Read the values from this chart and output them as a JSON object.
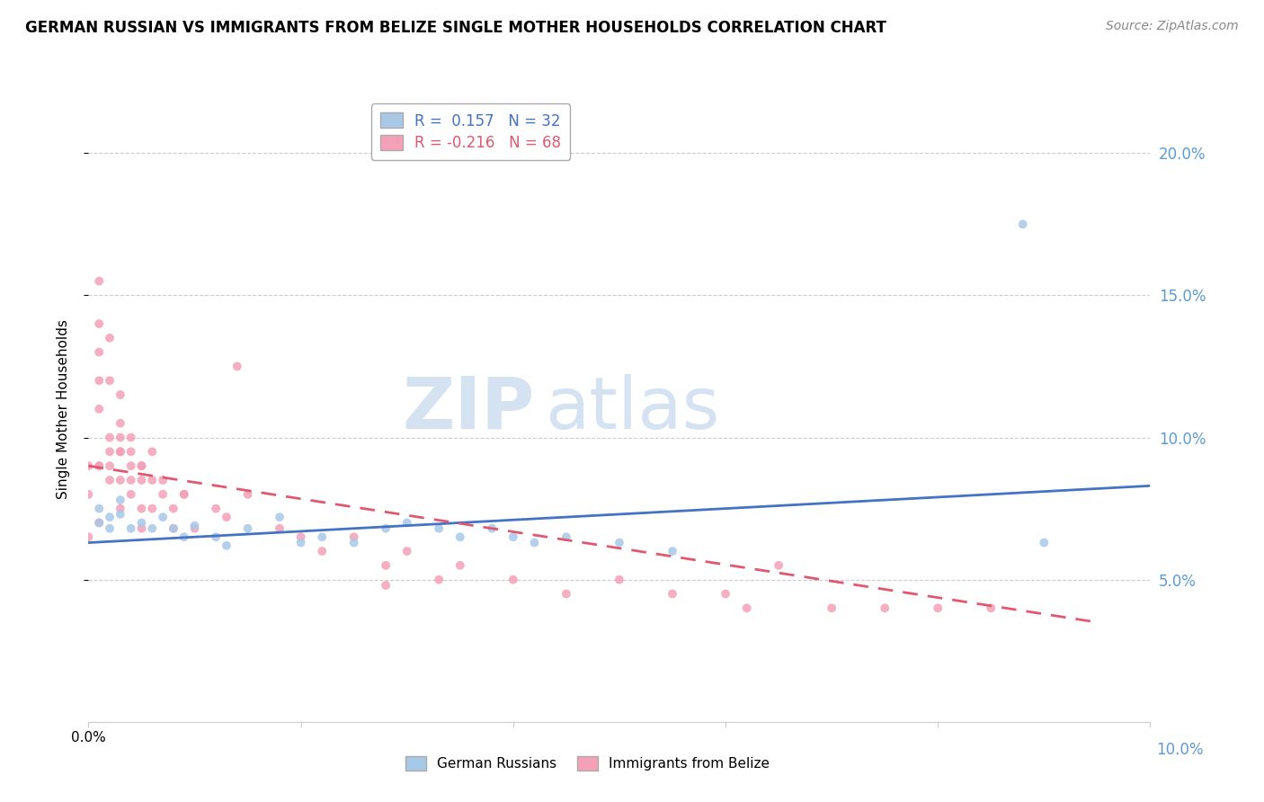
{
  "title": "GERMAN RUSSIAN VS IMMIGRANTS FROM BELIZE SINGLE MOTHER HOUSEHOLDS CORRELATION CHART",
  "source": "Source: ZipAtlas.com",
  "ylabel": "Single Mother Households",
  "watermark_zip": "ZIP",
  "watermark_atlas": "atlas",
  "color_blue": "#a8c8e8",
  "color_pink": "#f4a0b8",
  "color_line_blue": "#4472c4",
  "color_line_pink": "#e05870",
  "blue_scatter": {
    "x": [
      0.001,
      0.001,
      0.002,
      0.002,
      0.003,
      0.003,
      0.004,
      0.005,
      0.006,
      0.007,
      0.008,
      0.009,
      0.01,
      0.012,
      0.013,
      0.015,
      0.018,
      0.02,
      0.022,
      0.025,
      0.028,
      0.03,
      0.033,
      0.035,
      0.038,
      0.04,
      0.042,
      0.045,
      0.05,
      0.055,
      0.088,
      0.09
    ],
    "y": [
      0.075,
      0.07,
      0.072,
      0.068,
      0.078,
      0.073,
      0.068,
      0.07,
      0.068,
      0.072,
      0.068,
      0.065,
      0.069,
      0.065,
      0.062,
      0.068,
      0.072,
      0.063,
      0.065,
      0.063,
      0.068,
      0.07,
      0.068,
      0.065,
      0.068,
      0.065,
      0.063,
      0.065,
      0.063,
      0.06,
      0.175,
      0.063
    ]
  },
  "pink_scatter": {
    "x": [
      0.0,
      0.0,
      0.001,
      0.001,
      0.001,
      0.001,
      0.001,
      0.001,
      0.002,
      0.002,
      0.002,
      0.002,
      0.003,
      0.003,
      0.003,
      0.003,
      0.003,
      0.004,
      0.004,
      0.004,
      0.005,
      0.005,
      0.005,
      0.005,
      0.006,
      0.006,
      0.007,
      0.008,
      0.009,
      0.01,
      0.012,
      0.013,
      0.015,
      0.018,
      0.02,
      0.022,
      0.025,
      0.028,
      0.03,
      0.033,
      0.035,
      0.04,
      0.045,
      0.05,
      0.055,
      0.06,
      0.062,
      0.065,
      0.07,
      0.075,
      0.08,
      0.085,
      0.0,
      0.001,
      0.001,
      0.002,
      0.002,
      0.003,
      0.003,
      0.004,
      0.004,
      0.005,
      0.006,
      0.007,
      0.008,
      0.009,
      0.014,
      0.028
    ],
    "y": [
      0.08,
      0.09,
      0.155,
      0.14,
      0.13,
      0.12,
      0.11,
      0.09,
      0.135,
      0.12,
      0.1,
      0.09,
      0.115,
      0.105,
      0.095,
      0.085,
      0.075,
      0.1,
      0.09,
      0.08,
      0.09,
      0.085,
      0.075,
      0.068,
      0.085,
      0.075,
      0.08,
      0.075,
      0.08,
      0.068,
      0.075,
      0.072,
      0.08,
      0.068,
      0.065,
      0.06,
      0.065,
      0.055,
      0.06,
      0.05,
      0.055,
      0.05,
      0.045,
      0.05,
      0.045,
      0.045,
      0.04,
      0.055,
      0.04,
      0.04,
      0.04,
      0.04,
      0.065,
      0.07,
      0.09,
      0.095,
      0.085,
      0.095,
      0.1,
      0.095,
      0.085,
      0.09,
      0.095,
      0.085,
      0.068,
      0.08,
      0.125,
      0.048
    ]
  },
  "xlim": [
    0.0,
    0.1
  ],
  "ylim": [
    0.0,
    0.22
  ],
  "blue_line": {
    "x0": 0.0,
    "x1": 0.1,
    "y0": 0.063,
    "y1": 0.083
  },
  "pink_line": {
    "x0": 0.0,
    "x1": 0.095,
    "y0": 0.09,
    "y1": 0.035
  },
  "figsize": [
    14.06,
    8.92
  ],
  "dpi": 100
}
